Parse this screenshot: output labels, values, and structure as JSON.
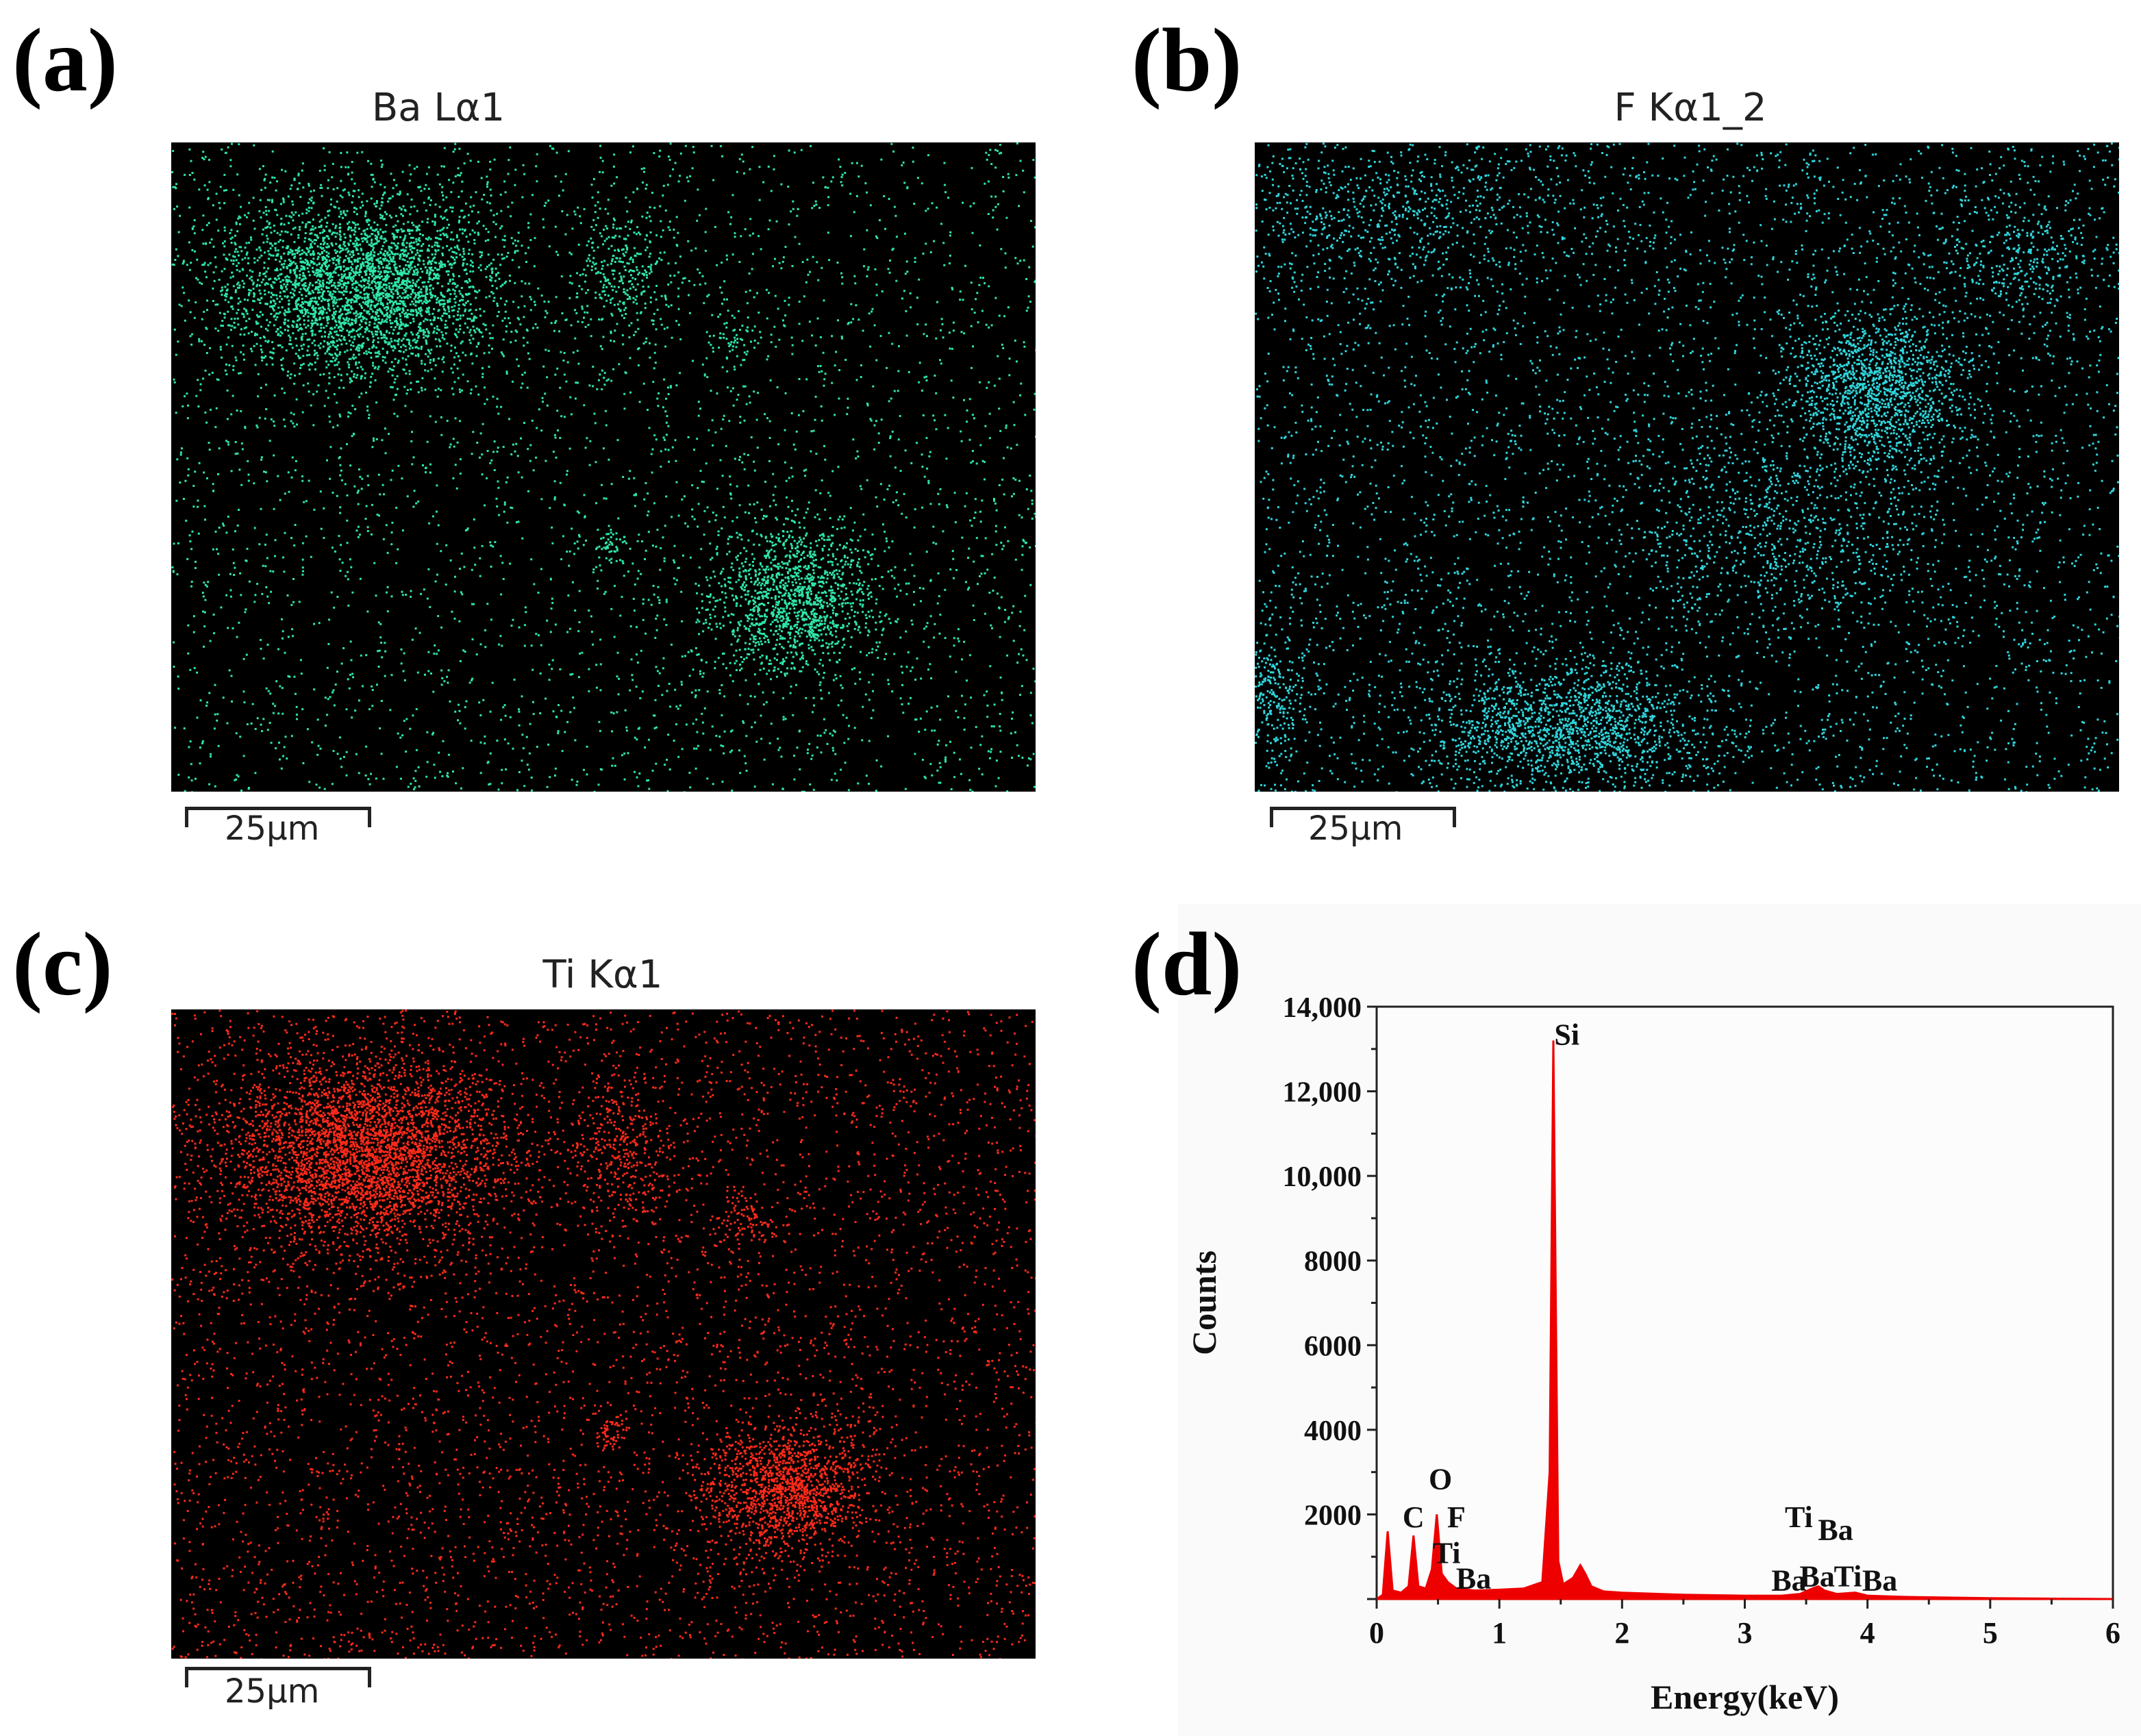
{
  "panels": {
    "a": {
      "letter": "(a)",
      "title": "Ba Lα1",
      "scale": "25μm",
      "color": "#2ee6a8"
    },
    "b": {
      "letter": "(b)",
      "title": "F Kα1_2",
      "scale": "25μm",
      "color": "#2fd6dc"
    },
    "c": {
      "letter": "(c)",
      "title": "Ti Kα1",
      "scale": "25μm",
      "color": "#ff2a1a"
    },
    "d": {
      "letter": "(d)"
    }
  },
  "chart_data": {
    "type": "line",
    "title": "",
    "xlabel": "Energy(keV)",
    "ylabel": "Counts",
    "xlim": [
      0,
      6
    ],
    "ylim": [
      0,
      14000
    ],
    "xticks": [
      "0",
      "1",
      "2",
      "3",
      "4",
      "5",
      "6"
    ],
    "yticks": [
      "0",
      "2000",
      "4000",
      "6000",
      "8000",
      "10,000",
      "12,000",
      "14,000"
    ],
    "series_color": "#ee0000",
    "series": [
      {
        "x": [
          0.0,
          0.05,
          0.09,
          0.13,
          0.2,
          0.26,
          0.3,
          0.34,
          0.4,
          0.45,
          0.49,
          0.53,
          0.58,
          0.65,
          0.8,
          1.0,
          1.2,
          1.35,
          1.41,
          1.44,
          1.46,
          1.48,
          1.52,
          1.6,
          1.66,
          1.7,
          1.75,
          1.85,
          2.0,
          2.5,
          3.0,
          3.3,
          3.45,
          3.55,
          3.6,
          3.65,
          3.75,
          3.9,
          4.0,
          4.3,
          5.0,
          6.0
        ],
        "y": [
          0,
          100,
          1600,
          200,
          150,
          300,
          1500,
          300,
          250,
          700,
          2000,
          600,
          400,
          250,
          200,
          220,
          250,
          400,
          3000,
          13200,
          7000,
          900,
          350,
          500,
          800,
          600,
          300,
          180,
          150,
          100,
          80,
          80,
          120,
          250,
          300,
          200,
          120,
          150,
          80,
          50,
          20,
          0
        ]
      }
    ],
    "annotations": [
      {
        "text": "Si",
        "x": 1.55,
        "y": 13100
      },
      {
        "text": "O",
        "x": 0.52,
        "y": 2600
      },
      {
        "text": "C",
        "x": 0.3,
        "y": 1700
      },
      {
        "text": "F",
        "x": 0.65,
        "y": 1700
      },
      {
        "text": "Ti",
        "x": 0.57,
        "y": 850
      },
      {
        "text": "Ba",
        "x": 0.79,
        "y": 250
      },
      {
        "text": "Ti",
        "x": 3.44,
        "y": 1700
      },
      {
        "text": "Ba",
        "x": 3.74,
        "y": 1400
      },
      {
        "text": "Ba",
        "x": 3.36,
        "y": 200
      },
      {
        "text": "Ba",
        "x": 3.59,
        "y": 300
      },
      {
        "text": "Ti",
        "x": 3.84,
        "y": 300
      },
      {
        "text": "Ba",
        "x": 4.1,
        "y": 200
      }
    ]
  }
}
